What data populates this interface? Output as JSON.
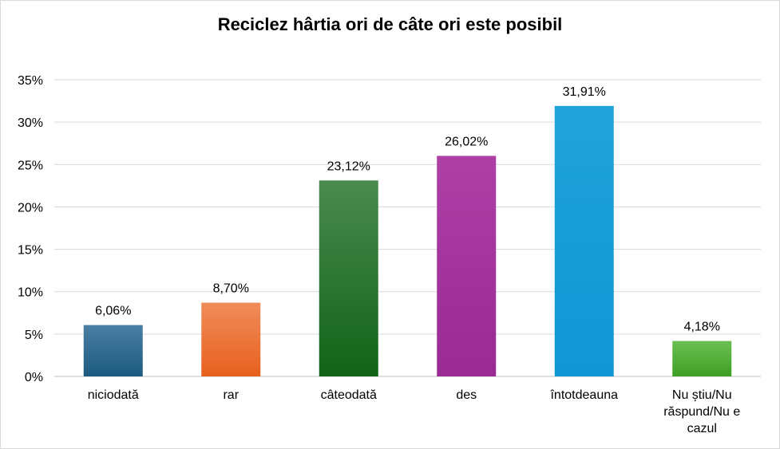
{
  "chart_data": {
    "type": "bar",
    "title": "Reciclez hârtia ori de câte ori este posibil",
    "categories": [
      "niciodată",
      "rar",
      "câteodată",
      "des",
      "întotdeauna",
      "Nu știu/Nu răspund/Nu e cazul"
    ],
    "category_lines": [
      [
        "niciodată"
      ],
      [
        "rar"
      ],
      [
        "câteodată"
      ],
      [
        "des"
      ],
      [
        "întotdeauna"
      ],
      [
        "Nu știu/Nu",
        "răspund/Nu e",
        "cazul"
      ]
    ],
    "values": [
      6.06,
      8.7,
      23.12,
      26.02,
      31.91,
      4.18
    ],
    "data_labels": [
      "6,06%",
      "8,70%",
      "23,12%",
      "26,02%",
      "31,91%",
      "4,18%"
    ],
    "colors": [
      [
        "#4a7fa3",
        "#1d5a80"
      ],
      [
        "#f08c5a",
        "#e8601e"
      ],
      [
        "#4a8a4f",
        "#116318"
      ],
      [
        "#ad3fa5",
        "#9a2a94"
      ],
      [
        "#21a3da",
        "#0f96d4"
      ],
      [
        "#6bbf52",
        "#3f9f24"
      ]
    ],
    "y_ticks": [
      "0%",
      "5%",
      "10%",
      "15%",
      "20%",
      "25%",
      "30%",
      "35%"
    ],
    "ylim": [
      0,
      35
    ],
    "grid": true,
    "xlabel": "",
    "ylabel": "",
    "legend": "none"
  }
}
